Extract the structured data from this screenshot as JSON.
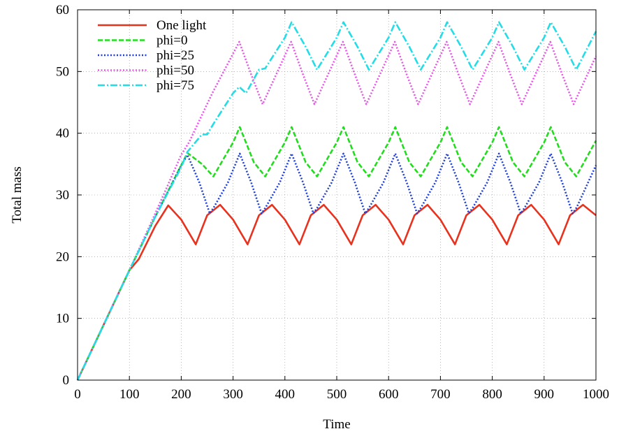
{
  "chart_data": {
    "type": "line",
    "title": "",
    "xlabel": "Time",
    "ylabel": "Total mass",
    "xlim": [
      0,
      1000
    ],
    "ylim": [
      0,
      60
    ],
    "xticks": [
      "0",
      "100",
      "200",
      "300",
      "400",
      "500",
      "600",
      "700",
      "800",
      "900",
      "1000"
    ],
    "yticks": [
      "0",
      "10",
      "20",
      "30",
      "40",
      "50",
      "60"
    ],
    "grid": true,
    "legend_position": "top-left",
    "series": [
      {
        "name": "One light",
        "color": "#e8321e",
        "dash": "solid",
        "x": [
          0,
          100,
          118,
          150,
          175,
          200,
          228,
          250,
          275,
          300,
          328,
          350,
          375,
          400,
          428,
          450,
          475,
          500,
          528,
          550,
          575,
          600,
          628,
          650,
          675,
          700,
          728,
          750,
          775,
          800,
          828,
          850,
          875,
          900,
          928,
          950,
          975,
          1000
        ],
        "y": [
          0,
          17.8,
          19.6,
          25,
          28.3,
          26,
          22,
          26.7,
          28.4,
          26,
          22,
          26.7,
          28.4,
          26,
          22,
          26.7,
          28.4,
          26,
          22,
          26.7,
          28.4,
          26,
          22,
          26.7,
          28.4,
          26,
          22,
          26.7,
          28.4,
          26,
          22,
          26.7,
          28.4,
          26,
          22,
          26.7,
          28.4,
          26.7
        ]
      },
      {
        "name": "phi=0",
        "color": "#22dd1e",
        "dash": "dashed",
        "x": [
          0,
          100,
          150,
          200,
          212,
          240,
          262,
          300,
          313,
          340,
          362,
          400,
          413,
          440,
          462,
          500,
          513,
          540,
          562,
          600,
          613,
          640,
          662,
          700,
          713,
          740,
          762,
          800,
          813,
          840,
          862,
          900,
          913,
          940,
          962,
          1000
        ],
        "y": [
          0,
          17.8,
          26.5,
          34.8,
          36.8,
          35,
          33,
          38.5,
          41,
          35.3,
          33,
          38.5,
          41,
          35.3,
          33,
          38.5,
          41,
          35.3,
          33,
          38.5,
          41,
          35.3,
          33,
          38.5,
          41,
          35.3,
          33,
          38.5,
          41,
          35.3,
          33,
          38.5,
          41,
          35.3,
          33,
          38.8
        ]
      },
      {
        "name": "phi=25",
        "color": "#1f3fd9",
        "dash": "dotted",
        "x": [
          0,
          100,
          150,
          200,
          212,
          235,
          255,
          263,
          290,
          313,
          335,
          355,
          363,
          390,
          413,
          435,
          455,
          463,
          490,
          513,
          535,
          555,
          563,
          590,
          613,
          635,
          655,
          663,
          690,
          713,
          735,
          755,
          763,
          790,
          813,
          835,
          855,
          863,
          890,
          913,
          935,
          955,
          963,
          1000
        ],
        "y": [
          0,
          17.8,
          26.5,
          34.8,
          36.5,
          32,
          27,
          28,
          32,
          36.7,
          32,
          27,
          28,
          32,
          36.7,
          32,
          27,
          28,
          32,
          36.7,
          32,
          27,
          28,
          32,
          36.7,
          32,
          27,
          28,
          32,
          36.7,
          32,
          27,
          28,
          32,
          36.7,
          32,
          27,
          28,
          32,
          36.7,
          32,
          27,
          28,
          34.8
        ]
      },
      {
        "name": "phi=50",
        "color": "#e655e6",
        "dash": "dotted",
        "x": [
          0,
          100,
          150,
          200,
          215,
          260,
          312,
          335,
          357,
          412,
          435,
          457,
          512,
          535,
          557,
          612,
          635,
          657,
          712,
          735,
          757,
          812,
          835,
          857,
          912,
          935,
          957,
          1000
        ],
        "y": [
          0,
          17.8,
          27,
          36.5,
          38.5,
          46.5,
          54.8,
          49.5,
          44.7,
          54.8,
          49.5,
          44.7,
          54.8,
          49.5,
          44.7,
          54.8,
          49.5,
          44.7,
          54.8,
          49.5,
          44.7,
          54.8,
          49.5,
          44.7,
          54.8,
          49.5,
          44.7,
          52.5
        ]
      },
      {
        "name": "phi=75",
        "color": "#22dde6",
        "dash": "dashdot",
        "x": [
          0,
          100,
          150,
          200,
          212,
          240,
          250,
          262,
          300,
          312,
          325,
          350,
          362,
          400,
          413,
          440,
          462,
          500,
          513,
          540,
          562,
          600,
          613,
          640,
          662,
          700,
          713,
          740,
          762,
          800,
          813,
          840,
          862,
          900,
          913,
          940,
          962,
          1000
        ],
        "y": [
          0,
          17.8,
          26.5,
          34.5,
          37,
          39.8,
          39.8,
          41.5,
          46.5,
          47.5,
          46.5,
          50.3,
          50.5,
          55.5,
          58,
          54,
          50.3,
          55.5,
          58,
          54,
          50.3,
          55.5,
          58,
          54,
          50.3,
          55.5,
          58,
          54,
          50.3,
          55.5,
          58,
          54,
          50.3,
          55.5,
          58,
          54,
          50.3,
          56.5
        ]
      }
    ]
  }
}
